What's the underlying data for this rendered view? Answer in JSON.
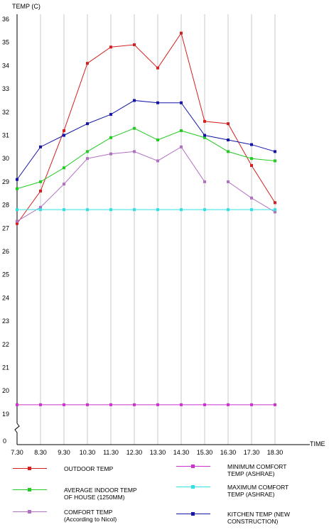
{
  "chart_data": {
    "type": "line",
    "ylabel": "TEMP  (C)",
    "xlabel": "TIME",
    "categories": [
      "7.30",
      "8.30",
      "9.30",
      "10.30",
      "11.30",
      "12.30",
      "13.30",
      "14.30",
      "15.30",
      "16.30",
      "17.30",
      "18.30"
    ],
    "yticks": [
      "36",
      "35",
      "34",
      "33",
      "32",
      "31",
      "30",
      "29",
      "28",
      "27",
      "26",
      "25",
      "24",
      "23",
      "22",
      "21",
      "20",
      "19"
    ],
    "y_zero_label": "0",
    "ylim": [
      18.5,
      36
    ],
    "axis_break": "between 0 and 19 on the y-axis",
    "grid": "vertical lines at each category",
    "legend_position": "bottom",
    "series": [
      {
        "name": "OUTDOOR TEMP",
        "color": "#d42020",
        "values": [
          27.2,
          28.6,
          31.2,
          34.1,
          34.8,
          34.9,
          33.9,
          35.4,
          31.6,
          31.5,
          29.7,
          28.1
        ]
      },
      {
        "name": "AVERAGE INDOOR TEMP\nOF HOUSE (1250MM)",
        "color": "#22cc22",
        "values": [
          28.7,
          29.0,
          29.6,
          30.3,
          30.9,
          31.3,
          30.8,
          31.2,
          30.9,
          30.3,
          30.0,
          29.9
        ]
      },
      {
        "name": "COMFORT TEMP\n(According to Nicol)",
        "color": "#b070c0",
        "values": [
          27.3,
          27.9,
          28.9,
          30.0,
          30.2,
          30.3,
          29.9,
          30.5,
          29.0,
          null,
          28.3,
          27.7
        ],
        "extra_point": {
          "category": "16.30",
          "value": 29.0
        }
      },
      {
        "name": "MINIMUM COMFORT\nTEMP (ASHRAE)",
        "color": "#cc33cc",
        "values": [
          19.4,
          19.4,
          19.4,
          19.4,
          19.4,
          19.4,
          19.4,
          19.4,
          19.4,
          19.4,
          19.4,
          19.4
        ]
      },
      {
        "name": "MAXIMUM COMFORT\nTEMP (ASHRAE)",
        "color": "#33e0e0",
        "values": [
          27.8,
          27.8,
          27.8,
          27.8,
          27.8,
          27.8,
          27.8,
          27.8,
          27.8,
          27.8,
          27.8,
          27.8
        ]
      },
      {
        "name": "KITCHEN TEMP (NEW\nCONSTRUCTION)",
        "color": "#1515a8",
        "values": [
          29.1,
          30.5,
          31.0,
          31.5,
          31.9,
          32.5,
          32.4,
          32.4,
          31.0,
          30.8,
          30.6,
          30.3
        ]
      }
    ]
  },
  "legend": {
    "left": [
      {
        "label": "OUTDOOR TEMP",
        "color": "#d42020"
      },
      {
        "label": "AVERAGE INDOOR TEMP\nOF HOUSE (1250MM)",
        "color": "#22cc22"
      },
      {
        "label": "COMFORT TEMP\n(According to Nicol)",
        "color": "#b070c0"
      }
    ],
    "right": [
      {
        "label": "MINIMUM COMFORT\nTEMP (ASHRAE)",
        "color": "#cc33cc"
      },
      {
        "label": "MAXIMUM COMFORT\nTEMP (ASHRAE)",
        "color": "#33e0e0"
      },
      {
        "label": "KITCHEN TEMP (NEW\nCONSTRUCTION)",
        "color": "#1515a8"
      }
    ]
  }
}
